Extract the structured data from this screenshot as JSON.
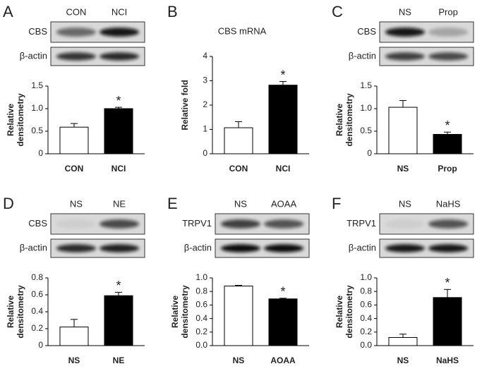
{
  "chart_data": [
    {
      "type": "bar",
      "panel": "A",
      "blot_lanes": [
        "CON",
        "NCI"
      ],
      "blot_rows": [
        "CBS",
        "β-actin"
      ],
      "y_label": [
        "Relative",
        "densitometry"
      ],
      "categories": [
        "CON",
        "NCI"
      ],
      "values": [
        0.59,
        1.0
      ],
      "errors": [
        0.08,
        0.03
      ],
      "colors": [
        "#ffffff",
        "#000000"
      ],
      "ylim": [
        0,
        1.5
      ],
      "yticks": [
        0,
        0.5,
        {
          "value": 1,
          "label": "1.0"
        },
        1.5
      ],
      "annotation": "*"
    },
    {
      "type": "bar",
      "panel": "B",
      "title": "CBS mRNA",
      "y_label": [
        "Relative fold"
      ],
      "categories": [
        "CON",
        "NCI"
      ],
      "values": [
        1.07,
        2.82
      ],
      "errors": [
        0.25,
        0.15
      ],
      "colors": [
        "#ffffff",
        "#000000"
      ],
      "ylim": [
        0,
        4
      ],
      "yticks": [
        0,
        1,
        2,
        3,
        4
      ],
      "annotation": "*"
    },
    {
      "type": "bar",
      "panel": "C",
      "blot_lanes": [
        "NS",
        "Prop"
      ],
      "blot_rows": [
        "CBS",
        "β-actin"
      ],
      "y_label": [
        "Relative",
        "densitometry"
      ],
      "categories": [
        "NS",
        "Prop"
      ],
      "values": [
        1.03,
        0.43
      ],
      "errors": [
        0.15,
        0.05
      ],
      "colors": [
        "#ffffff",
        "#000000"
      ],
      "ylim": [
        0,
        1.5
      ],
      "yticks": [
        0,
        0.5,
        {
          "value": 1,
          "label": "1.0"
        },
        1.5
      ],
      "annotation": "*"
    },
    {
      "type": "bar",
      "panel": "D",
      "blot_lanes": [
        "NS",
        "NE"
      ],
      "blot_rows": [
        "CBS",
        "β-actin"
      ],
      "y_label": [
        "Relative",
        "densitometry"
      ],
      "categories": [
        "NS",
        "NE"
      ],
      "values": [
        0.22,
        0.59
      ],
      "errors": [
        0.09,
        0.04
      ],
      "colors": [
        "#ffffff",
        "#000000"
      ],
      "ylim": [
        0,
        0.8
      ],
      "yticks": [
        0,
        0.2,
        0.4,
        0.6,
        0.8
      ],
      "annotation": "*"
    },
    {
      "type": "bar",
      "panel": "E",
      "blot_lanes": [
        "NS",
        "AOAA"
      ],
      "blot_rows": [
        "TRPV1",
        "β-actin"
      ],
      "y_label": [
        "Relative",
        "densitometry"
      ],
      "categories": [
        "NS",
        "AOAA"
      ],
      "values": [
        0.88,
        0.69
      ],
      "errors": [
        0.01,
        0.01
      ],
      "colors": [
        "#ffffff",
        "#000000"
      ],
      "ylim": [
        0,
        1
      ],
      "yticks": [
        {
          "value": 0,
          "label": "0.0"
        },
        0.2,
        0.4,
        0.6,
        0.8,
        {
          "value": 1,
          "label": "1.0"
        }
      ],
      "annotation": "*"
    },
    {
      "type": "bar",
      "panel": "F",
      "blot_lanes": [
        "NS",
        "NaHS"
      ],
      "blot_rows": [
        "TRPV1",
        "β-actin"
      ],
      "y_label": [
        "Relative",
        "densitometry"
      ],
      "categories": [
        "NS",
        "NaHS"
      ],
      "values": [
        0.12,
        0.71
      ],
      "errors": [
        0.05,
        0.12
      ],
      "colors": [
        "#ffffff",
        "#000000"
      ],
      "ylim": [
        0,
        1
      ],
      "yticks": [
        {
          "value": 0,
          "label": "0.0"
        },
        0.2,
        0.4,
        0.6,
        0.8,
        {
          "value": 1,
          "label": "1.0"
        }
      ],
      "annotation": "*"
    }
  ]
}
